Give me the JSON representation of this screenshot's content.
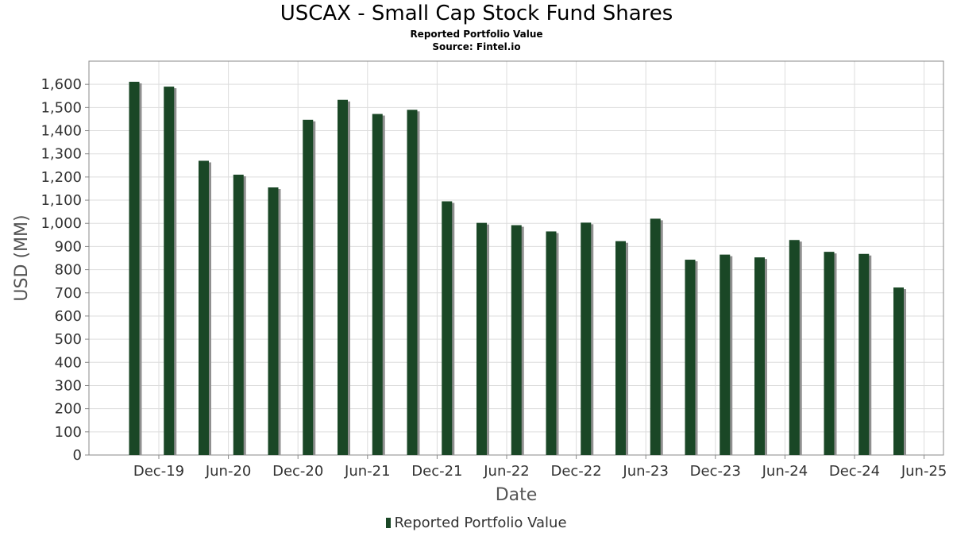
{
  "title": "USCAX - Small Cap Stock Fund Shares",
  "subtitle": "Reported Portfolio Value",
  "source": "Source: Fintel.io",
  "colors": {
    "bar": "#1a4726",
    "shadow": "#909090",
    "grid": "#dddddd",
    "frame": "#888888"
  },
  "chart_data": {
    "type": "bar",
    "title": "USCAX - Small Cap Stock Fund Shares",
    "xlabel": "Date",
    "ylabel": "USD (MM)",
    "ylim": [
      0,
      1700
    ],
    "yticks": [
      0,
      100,
      200,
      300,
      400,
      500,
      600,
      700,
      800,
      900,
      1000,
      1100,
      1200,
      1300,
      1400,
      1500,
      1600
    ],
    "ytick_labels": [
      "0",
      "100",
      "200",
      "300",
      "400",
      "500",
      "600",
      "700",
      "800",
      "900",
      "1,000",
      "1,100",
      "1,200",
      "1,300",
      "1,400",
      "1,500",
      "1,600"
    ],
    "xticks": [
      "Dec-19",
      "Jun-20",
      "Dec-20",
      "Jun-21",
      "Dec-21",
      "Jun-22",
      "Dec-22",
      "Jun-23",
      "Dec-23",
      "Jun-24",
      "Dec-24",
      "Jun-25"
    ],
    "grid": true,
    "legend_position": "bottom-center",
    "series": [
      {
        "name": "Reported Portfolio Value",
        "values": [
          1611,
          1590,
          1270,
          1210,
          1155,
          1447,
          1533,
          1472,
          1490,
          1095,
          1002,
          992,
          965,
          1003,
          923,
          1020,
          843,
          865,
          853,
          928,
          877,
          868,
          723
        ]
      }
    ]
  }
}
